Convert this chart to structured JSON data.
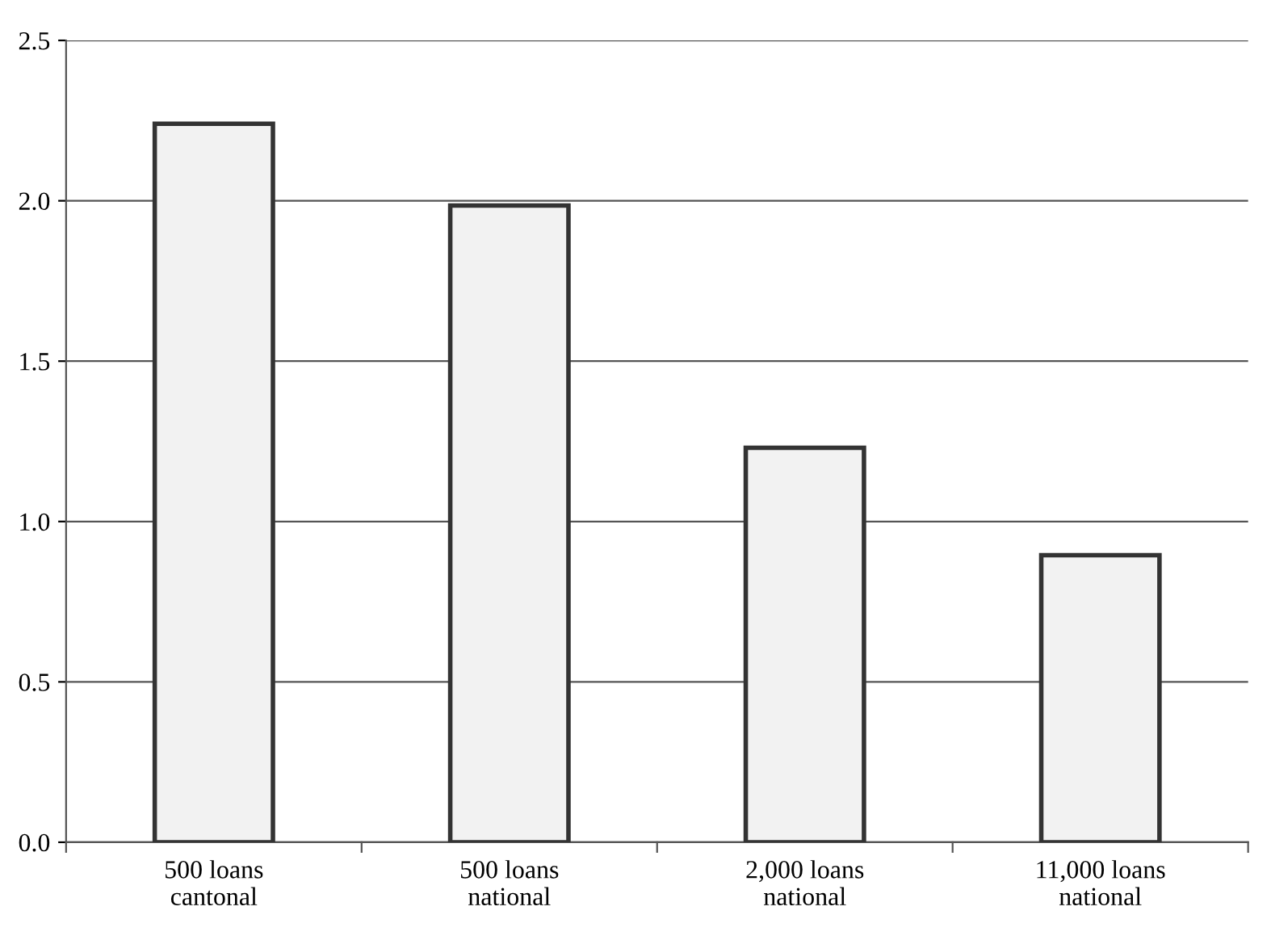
{
  "chart_data": {
    "type": "bar",
    "categories": [
      "500 loans\ncantonal",
      "500 loans\nnational",
      "2,000 loans\nnational",
      "11,000 loans\nnational"
    ],
    "values": [
      2.24,
      1.985,
      1.23,
      0.895
    ],
    "color": "#f2f2f2",
    "ylim": [
      0,
      2.5
    ],
    "yticks": [
      {
        "value": 0,
        "label": "0.0"
      },
      {
        "value": 0.5,
        "label": "0.5"
      },
      {
        "value": 1,
        "label": "1.0"
      },
      {
        "value": 1.5,
        "label": "1.5"
      },
      {
        "value": 2,
        "label": "2.0"
      },
      {
        "value": 2.5,
        "label": "2.5"
      }
    ],
    "grid": "y",
    "legend": false
  }
}
